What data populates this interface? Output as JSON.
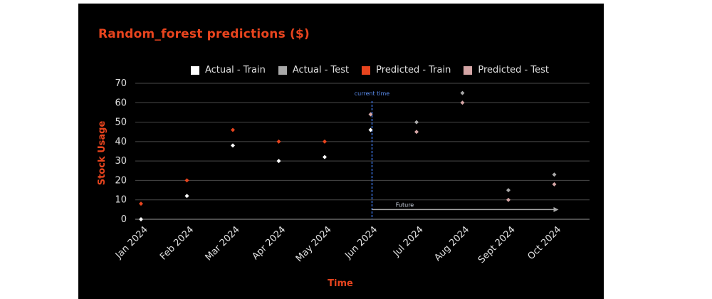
{
  "chart_data": {
    "type": "scatter",
    "title": "Random_forest predictions ($)",
    "xlabel": "Time",
    "ylabel": "Stock Usage",
    "categories": [
      "Jan 2024",
      "Feb 2024",
      "Mar 2024",
      "Apr 2024",
      "May 2024",
      "Jun 2024",
      "Jul 2024",
      "Aug 2024",
      "Sept 2024",
      "Oct 2024"
    ],
    "ylim": [
      0,
      70
    ],
    "yticks": [
      0,
      10,
      20,
      30,
      40,
      50,
      60,
      70
    ],
    "grid": true,
    "legend_position": "top",
    "series": [
      {
        "name": "Actual - Train",
        "color": "#ffffff",
        "values": [
          0,
          12,
          38,
          30,
          32,
          46,
          null,
          null,
          null,
          null
        ]
      },
      {
        "name": "Actual - Test",
        "color": "#a8a8a8",
        "values": [
          null,
          null,
          null,
          null,
          null,
          null,
          50,
          65,
          15,
          23
        ]
      },
      {
        "name": "Predicted - Train",
        "color": "#e8441e",
        "values": [
          8,
          20,
          46,
          40,
          40,
          null,
          null,
          null,
          null,
          null
        ]
      },
      {
        "name": "Predicted - Test",
        "color": "#d4a5a5",
        "values": [
          null,
          null,
          null,
          null,
          null,
          54,
          45,
          60,
          10,
          18
        ]
      }
    ],
    "annotations": [
      {
        "text": "current time",
        "x": "Jun 2024",
        "kind": "vertical-dashed-line",
        "color": "#3a6fd8"
      },
      {
        "text": "Future",
        "x_from": "Jun 2024",
        "x_to": "Oct 2024",
        "y": 5,
        "kind": "arrow",
        "color": "#a8a8a8"
      }
    ]
  }
}
